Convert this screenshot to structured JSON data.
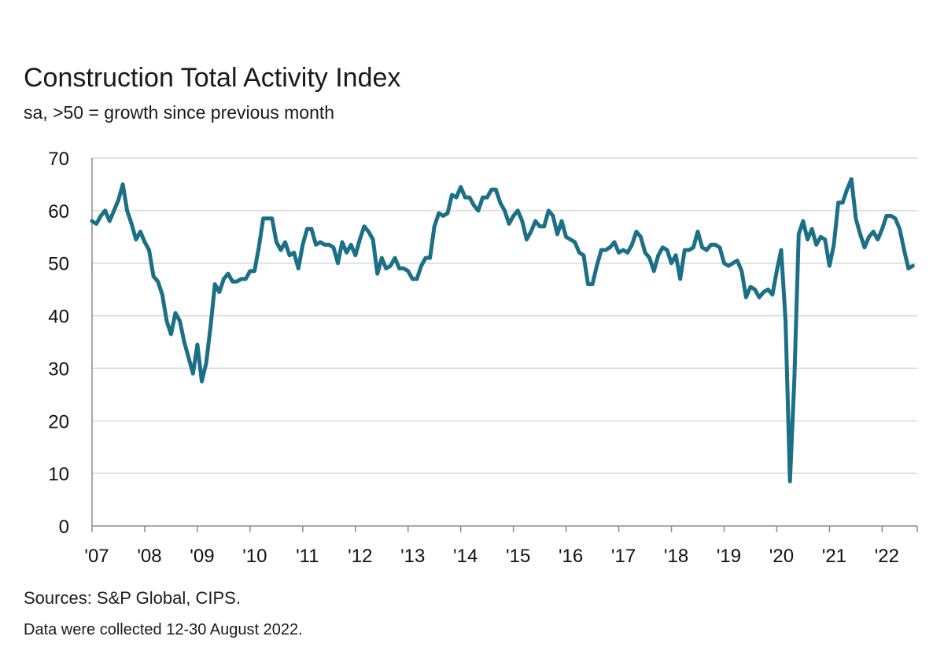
{
  "header": {
    "title": "Construction Total Activity Index",
    "subtitle": "sa, >50 = growth since previous month"
  },
  "footer": {
    "source": "Sources: S&P Global, CIPS.",
    "note": "Data were collected 12-30 August 2022."
  },
  "colors": {
    "series": "#1b6f86",
    "grid": "#d9d9d9",
    "axis": "#8c8c8c"
  },
  "chart_data": {
    "type": "line",
    "title": "Construction Total Activity Index",
    "subtitle": "sa, >50 = growth since previous month",
    "xlabel": "",
    "ylabel": "",
    "ylim": [
      0,
      70
    ],
    "xlim": [
      "2007-01",
      "2022-08"
    ],
    "grid": true,
    "y_ticks": [
      "0",
      "10",
      "20",
      "30",
      "40",
      "50",
      "60",
      "70"
    ],
    "x_ticks": [
      "'07",
      "'08",
      "'09",
      "'10",
      "'11",
      "'12",
      "'13",
      "'14",
      "'15",
      "'16",
      "'17",
      "'18",
      "'19",
      "'20",
      "'21",
      "'22"
    ],
    "series": [
      {
        "start": "2007-01",
        "frequency": "monthly",
        "values": [
          58.0,
          57.5,
          59.0,
          60.0,
          58.0,
          60.0,
          62.0,
          65.0,
          60.0,
          57.5,
          54.5,
          56.0,
          54.0,
          52.5,
          47.5,
          46.5,
          44.0,
          39.0,
          36.5,
          40.5,
          39.0,
          35.0,
          32.0,
          29.0,
          34.5,
          27.5,
          31.0,
          38.0,
          46.0,
          44.5,
          47.0,
          48.0,
          46.5,
          46.5,
          47.0,
          47.0,
          48.5,
          48.5,
          53.0,
          58.5,
          58.5,
          58.5,
          54.0,
          52.5,
          54.0,
          51.5,
          52.0,
          49.0,
          53.5,
          56.5,
          56.5,
          53.5,
          54.0,
          53.5,
          53.5,
          53.0,
          50.0,
          54.0,
          52.0,
          53.5,
          51.5,
          54.5,
          57.0,
          56.0,
          54.5,
          48.0,
          51.0,
          49.0,
          49.5,
          51.0,
          49.0,
          49.0,
          48.5,
          47.0,
          47.0,
          49.5,
          51.0,
          51.0,
          57.0,
          59.5,
          59.0,
          59.5,
          63.0,
          62.5,
          64.5,
          62.5,
          62.5,
          61.0,
          60.0,
          62.5,
          62.5,
          64.0,
          64.0,
          61.5,
          60.0,
          57.5,
          59.0,
          60.0,
          58.0,
          54.5,
          56.0,
          58.0,
          57.0,
          57.0,
          60.0,
          59.0,
          55.5,
          58.0,
          55.0,
          54.5,
          54.0,
          52.0,
          51.5,
          46.0,
          46.0,
          49.5,
          52.5,
          52.5,
          53.0,
          54.0,
          52.0,
          52.5,
          52.0,
          53.5,
          56.0,
          55.0,
          52.0,
          51.0,
          48.5,
          51.5,
          53.0,
          52.5,
          50.0,
          51.5,
          47.0,
          52.5,
          52.5,
          53.0,
          56.0,
          53.0,
          52.5,
          53.5,
          53.5,
          53.0,
          50.0,
          49.5,
          50.0,
          50.5,
          48.5,
          43.5,
          45.5,
          45.0,
          43.5,
          44.5,
          45.0,
          44.0,
          48.5,
          52.5,
          39.0,
          8.5,
          28.0,
          55.5,
          58.0,
          54.5,
          56.5,
          53.5,
          55.0,
          54.5,
          49.5,
          53.5,
          61.5,
          61.5,
          64.0,
          66.0,
          58.5,
          55.5,
          53.0,
          55.0,
          56.0,
          54.5,
          56.5,
          59.0,
          59.0,
          58.5,
          56.5,
          52.5,
          49.0,
          49.5
        ]
      }
    ]
  }
}
